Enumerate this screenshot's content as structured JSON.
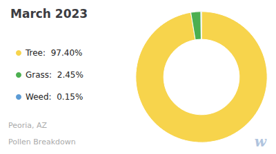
{
  "chart_data": {
    "type": "pie",
    "title": "March 2023",
    "subtitle": [
      "Peoria, AZ",
      "Pollen Breakdown"
    ],
    "annotations": [
      "w"
    ],
    "categories": [
      "Tree",
      "Grass",
      "Weed"
    ],
    "values": [
      97.4,
      2.45,
      0.15
    ],
    "value_labels": [
      "Tree:  97.40%",
      "Grass:  2.45%",
      "Weed:  0.15%"
    ],
    "colors": [
      "#f7d44c",
      "#4caf50",
      "#5b9bd5"
    ],
    "legend": "left"
  }
}
